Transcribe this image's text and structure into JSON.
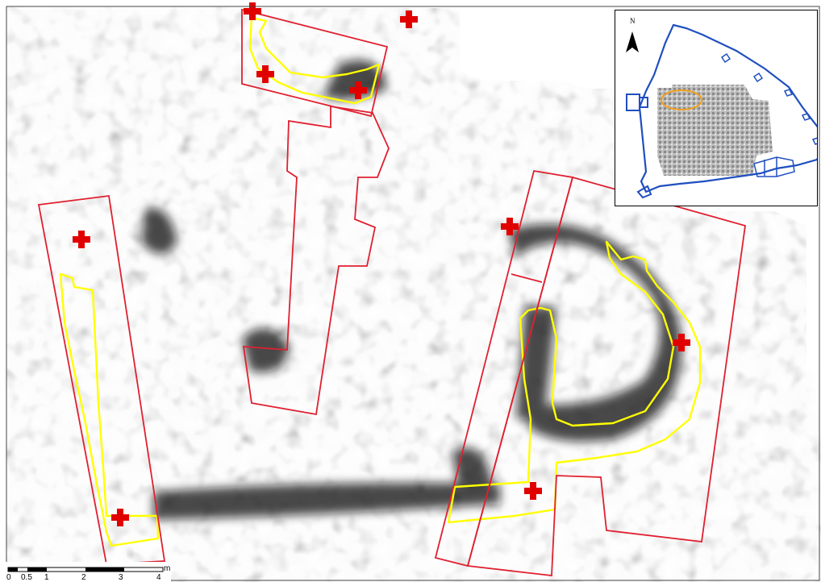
{
  "map": {
    "colors": {
      "survey_zone_outline": "#e02030",
      "anomaly_outline": "#ffff00",
      "marker": "#e00000",
      "inset_wall": "#1f4fbf",
      "inset_highlight": "#f0a020"
    },
    "icons": {
      "marker": "red-cross-icon",
      "north": "north-arrow-icon"
    }
  },
  "scale_bar": {
    "ticks": [
      "0",
      "0.5",
      "1",
      "2",
      "3",
      "4"
    ],
    "unit": "m"
  },
  "inset": {
    "north_label": "N"
  }
}
